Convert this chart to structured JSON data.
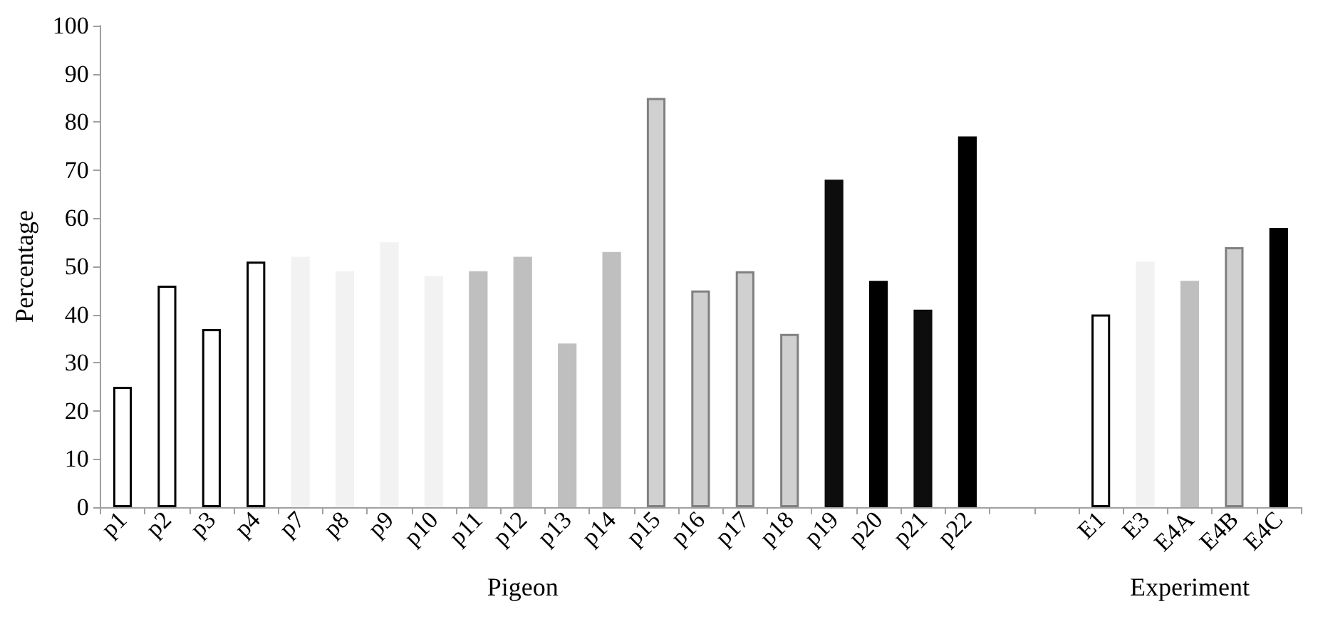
{
  "chart_data": {
    "type": "bar",
    "xlabel": "Pigeon",
    "ylabel": "Percentage",
    "annotations": [
      "Experiment"
    ],
    "categories": [
      "p1",
      "p2",
      "p3",
      "p4",
      "p7",
      "p8",
      "p9",
      "p10",
      "p11",
      "p12",
      "p13",
      "p14",
      "p15",
      "p16",
      "p17",
      "p18",
      "p19",
      "p20",
      "p21",
      "p22",
      null,
      null,
      "E1",
      "E3",
      "E4A",
      "E4B",
      "E4C"
    ],
    "values": [
      25,
      46,
      37,
      51,
      52,
      49,
      55,
      48,
      49,
      52,
      34,
      53,
      85,
      45,
      49,
      36,
      68,
      47,
      41,
      77,
      null,
      null,
      40,
      51,
      47,
      54,
      58
    ],
    "colors": [
      "#ffffff",
      "#ffffff",
      "#ffffff",
      "#ffffff",
      "#f2f2f2",
      "#f2f2f2",
      "#f2f2f2",
      "#f2f2f2",
      "#bfbfbf",
      "#bfbfbf",
      "#bfbfbf",
      "#bfbfbf",
      "#d0d0d0",
      "#d0d0d0",
      "#d0d0d0",
      "#d0d0d0",
      "#0d0d0d",
      "#000000",
      "#0d0d0d",
      "#000000",
      null,
      null,
      "#ffffff",
      "#f2f2f2",
      "#bfbfbf",
      "#d0d0d0",
      "#000000"
    ],
    "ylim": [
      0,
      100
    ],
    "yticks": [
      0,
      10,
      20,
      30,
      40,
      50,
      60,
      70,
      80,
      90,
      100
    ]
  }
}
